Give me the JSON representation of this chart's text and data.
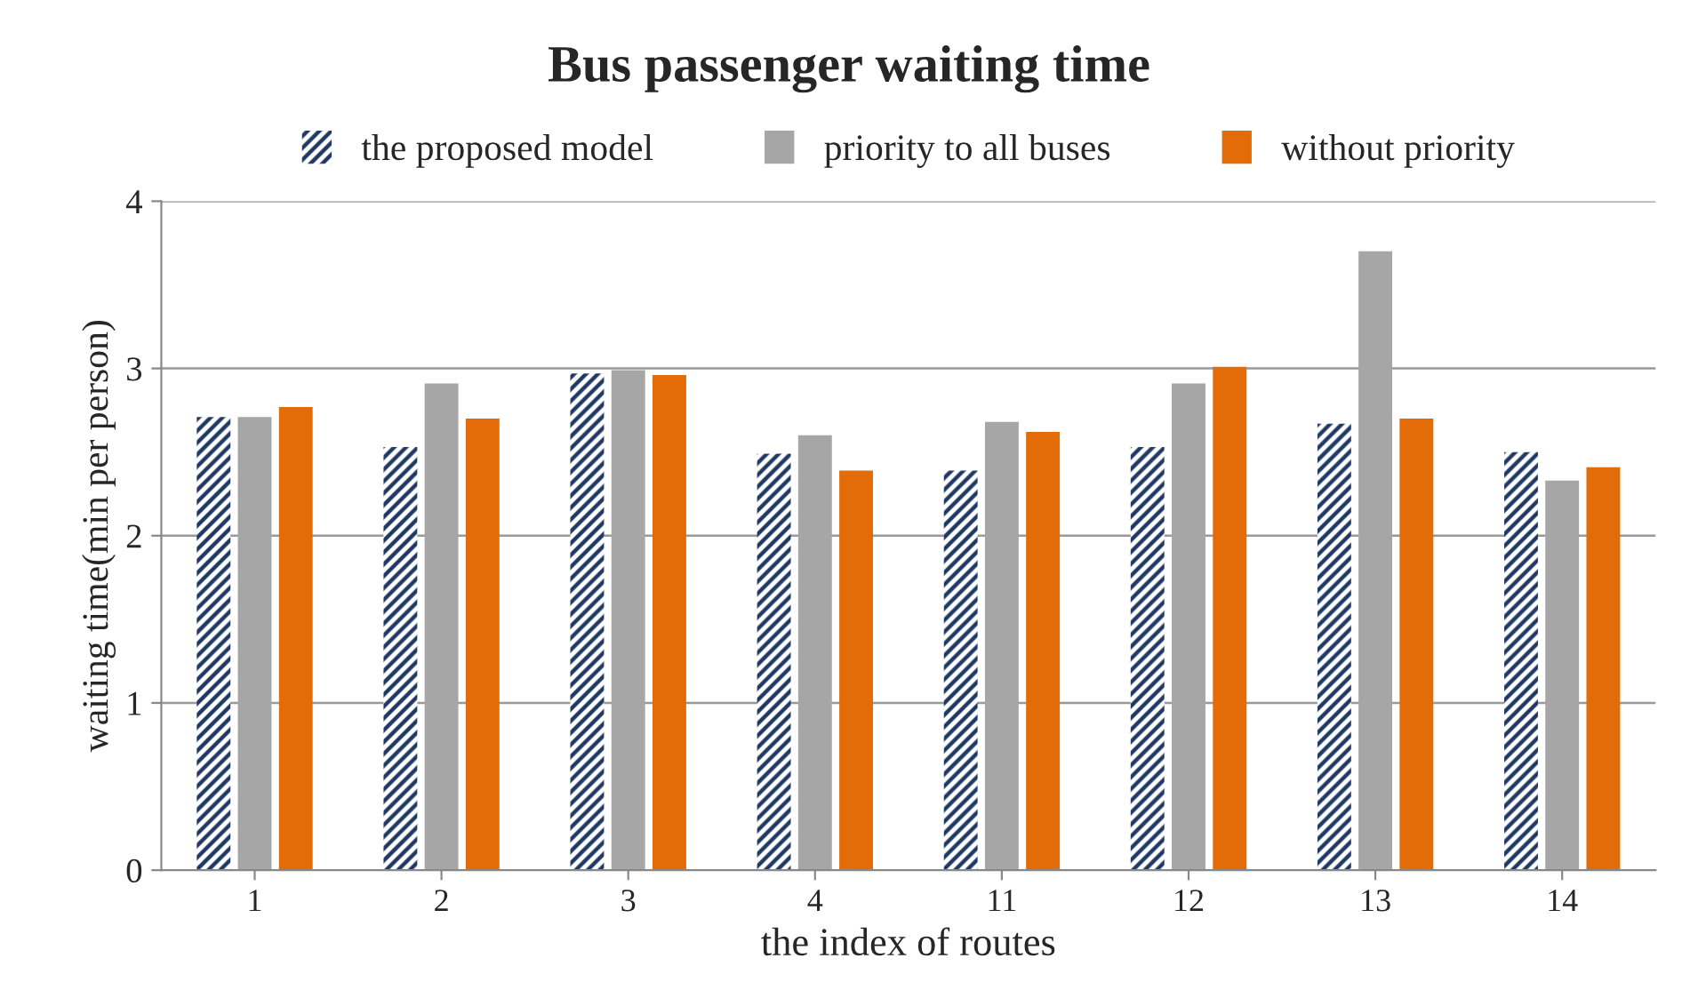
{
  "chart_data": {
    "type": "bar",
    "title": "Bus passenger waiting time",
    "xlabel": "the index of routes",
    "ylabel": "waiting time(min per person)",
    "categories": [
      "1",
      "2",
      "3",
      "4",
      "11",
      "12",
      "13",
      "14"
    ],
    "series": [
      {
        "name": "the proposed model",
        "color": "#1f3864",
        "values": [
          2.71,
          2.53,
          2.97,
          2.49,
          2.39,
          2.53,
          2.67,
          2.5
        ]
      },
      {
        "name": "priority to all buses",
        "color": "#a6a6a6",
        "values": [
          2.71,
          2.91,
          2.99,
          2.6,
          2.68,
          2.91,
          3.7,
          2.33
        ]
      },
      {
        "name": "without priority",
        "color": "#e36c09",
        "values": [
          2.77,
          2.7,
          2.96,
          2.39,
          2.62,
          3.01,
          2.7,
          2.41
        ]
      }
    ],
    "ylim": [
      0,
      4
    ],
    "yticks": [
      0,
      1,
      2,
      3,
      4
    ],
    "grid": "y",
    "legend": "top"
  }
}
